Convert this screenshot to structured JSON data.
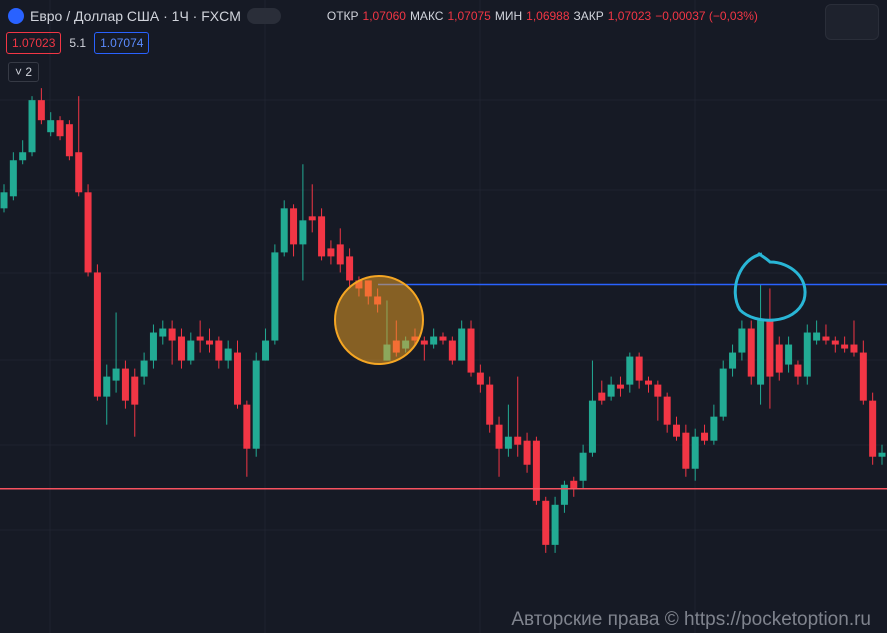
{
  "header": {
    "symbol": "Евро / Доллар США · 1Ч · FXCM",
    "open_label": "ОТКР",
    "open": "1,07060",
    "high_label": "МАКС",
    "high": "1,07075",
    "low_label": "МИН",
    "low": "1,06988",
    "close_label": "ЗАКР",
    "close": "1,07023",
    "change": "−0,00037 (−0,03%)",
    "bid": "1.07023",
    "spread": "5.1",
    "ask": "1.07074",
    "collapse": "2"
  },
  "watermark": "Авторские права © https://pocketoption.ru",
  "chart_data": {
    "type": "candlestick",
    "up_color": "#22ab94",
    "down_color": "#f23645",
    "ylim": [
      1.06988,
      1.07146
    ],
    "open": [
      1.07094,
      1.07097,
      1.07106,
      1.07108,
      1.07121,
      1.07113,
      1.07116,
      1.07115,
      1.07108,
      1.07098,
      1.07078,
      1.07047,
      1.07051,
      1.07054,
      1.07052,
      1.07052,
      1.07056,
      1.07062,
      1.07064,
      1.07062,
      1.07056,
      1.07062,
      1.07061,
      1.07061,
      1.07056,
      1.07058,
      1.07045,
      1.07034,
      1.07056,
      1.07061,
      1.07083,
      1.07094,
      1.07085,
      1.07092,
      1.07092,
      1.07084,
      1.07085,
      1.07082,
      1.07076,
      1.07076,
      1.07072,
      1.07056,
      1.07061,
      1.07059,
      1.07062,
      1.07061,
      1.0706,
      1.07062,
      1.07061,
      1.07056,
      1.07064,
      1.07053,
      1.0705,
      1.0704,
      1.07034,
      1.07037,
      1.07036,
      1.07036,
      1.07021,
      1.0701,
      1.0702,
      1.07026,
      1.07026,
      1.07033,
      1.07048,
      1.07047,
      1.0705,
      1.0705,
      1.07057,
      1.07051,
      1.0705,
      1.07047,
      1.0704,
      1.07038,
      1.07029,
      1.07038,
      1.07036,
      1.07042,
      1.07054,
      1.07058,
      1.07064,
      1.0705,
      1.07066,
      1.0706,
      1.07055,
      1.07055,
      1.07052,
      1.07061,
      1.07062,
      1.07061,
      1.0706,
      1.0706,
      1.07058,
      1.07046,
      1.07032
    ],
    "high": [
      1.071,
      1.07108,
      1.07111,
      1.07122,
      1.07124,
      1.07118,
      1.07117,
      1.07116,
      1.07122,
      1.071,
      1.0708,
      1.07055,
      1.07068,
      1.07056,
      1.07054,
      1.07058,
      1.07065,
      1.07066,
      1.07066,
      1.07064,
      1.07063,
      1.07066,
      1.07064,
      1.07062,
      1.07061,
      1.07061,
      1.07046,
      1.07058,
      1.07064,
      1.07085,
      1.07096,
      1.07095,
      1.07105,
      1.071,
      1.07094,
      1.07086,
      1.07089,
      1.07084,
      1.07077,
      1.07076,
      1.07074,
      1.07071,
      1.07066,
      1.07062,
      1.07064,
      1.07062,
      1.07064,
      1.07063,
      1.07062,
      1.07066,
      1.07066,
      1.07055,
      1.07052,
      1.07042,
      1.07045,
      1.07052,
      1.07038,
      1.07037,
      1.07022,
      1.07022,
      1.07026,
      1.07027,
      1.07035,
      1.07056,
      1.07051,
      1.07052,
      1.07052,
      1.07058,
      1.07058,
      1.07052,
      1.07051,
      1.07048,
      1.07042,
      1.0704,
      1.07039,
      1.0704,
      1.07045,
      1.07056,
      1.0706,
      1.07066,
      1.07066,
      1.07075,
      1.07074,
      1.07062,
      1.07062,
      1.07056,
      1.07065,
      1.07066,
      1.07065,
      1.07062,
      1.07062,
      1.07066,
      1.07061,
      1.07048,
      1.07035
    ],
    "low": [
      1.07093,
      1.07096,
      1.07105,
      1.07107,
      1.07115,
      1.07112,
      1.07111,
      1.07106,
      1.07097,
      1.07077,
      1.07046,
      1.0704,
      1.07048,
      1.07044,
      1.07037,
      1.0705,
      1.07054,
      1.0706,
      1.07055,
      1.07054,
      1.07055,
      1.07058,
      1.07058,
      1.07054,
      1.07054,
      1.07044,
      1.07027,
      1.07032,
      1.07056,
      1.0706,
      1.07082,
      1.07082,
      1.07076,
      1.07088,
      1.07081,
      1.0708,
      1.07078,
      1.07074,
      1.07072,
      1.0707,
      1.07068,
      1.07056,
      1.07057,
      1.07058,
      1.0706,
      1.07056,
      1.07059,
      1.0706,
      1.07055,
      1.07056,
      1.07052,
      1.07048,
      1.07038,
      1.07027,
      1.07032,
      1.07032,
      1.07028,
      1.0702,
      1.07008,
      1.07008,
      1.07018,
      1.07022,
      1.07024,
      1.07032,
      1.07045,
      1.07046,
      1.07047,
      1.07048,
      1.07049,
      1.07048,
      1.07041,
      1.07038,
      1.07036,
      1.07027,
      1.07026,
      1.07035,
      1.07035,
      1.07041,
      1.07052,
      1.07056,
      1.0705,
      1.07045,
      1.07044,
      1.07051,
      1.07053,
      1.0705,
      1.0705,
      1.0706,
      1.0706,
      1.07058,
      1.07058,
      1.07057,
      1.07045,
      1.0703,
      1.0703
    ],
    "close": [
      1.07098,
      1.07106,
      1.07108,
      1.07121,
      1.07116,
      1.07116,
      1.07112,
      1.07107,
      1.07098,
      1.07078,
      1.07047,
      1.07052,
      1.07054,
      1.07046,
      1.07045,
      1.07056,
      1.07063,
      1.07064,
      1.07061,
      1.07056,
      1.07061,
      1.07061,
      1.0706,
      1.07056,
      1.07059,
      1.07045,
      1.07034,
      1.07056,
      1.07061,
      1.07083,
      1.07094,
      1.07085,
      1.07091,
      1.07091,
      1.07082,
      1.07082,
      1.0708,
      1.07076,
      1.07074,
      1.07072,
      1.0707,
      1.0706,
      1.07058,
      1.07061,
      1.07061,
      1.0706,
      1.07062,
      1.07061,
      1.07056,
      1.07064,
      1.07053,
      1.0705,
      1.0704,
      1.07034,
      1.07037,
      1.07035,
      1.0703,
      1.07021,
      1.0701,
      1.0702,
      1.07025,
      1.07024,
      1.07033,
      1.07046,
      1.07046,
      1.0705,
      1.07049,
      1.07057,
      1.07051,
      1.0705,
      1.07047,
      1.0704,
      1.07037,
      1.07029,
      1.07037,
      1.07036,
      1.07042,
      1.07054,
      1.07058,
      1.07064,
      1.07052,
      1.07066,
      1.07052,
      1.07053,
      1.0706,
      1.07052,
      1.07063,
      1.07063,
      1.07061,
      1.0706,
      1.07059,
      1.07058,
      1.07046,
      1.07032,
      1.07033
    ],
    "hlines": [
      {
        "value": 1.07075,
        "color": "#2962ff"
      },
      {
        "value": 1.07024,
        "color": "#f7525f"
      }
    ]
  }
}
